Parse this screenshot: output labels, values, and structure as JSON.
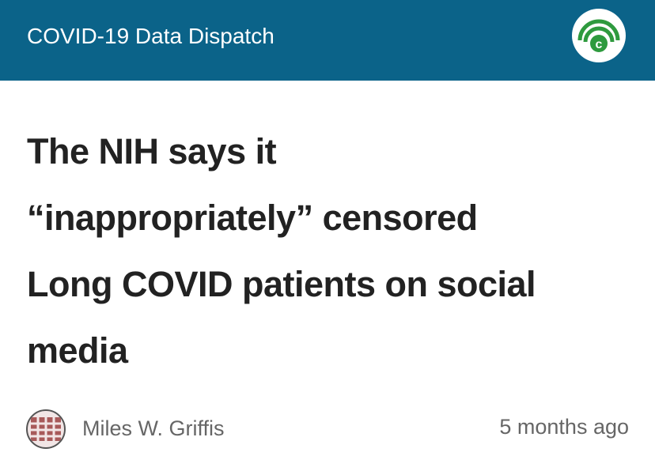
{
  "header": {
    "title": "COVID-19 Data Dispatch"
  },
  "article": {
    "title_lines": [
      "The NIH says it",
      "“inappropriately” censored",
      "Long COVID patients on social",
      "media"
    ],
    "author": "Miles W. Griffis",
    "time": "5 months ago"
  }
}
